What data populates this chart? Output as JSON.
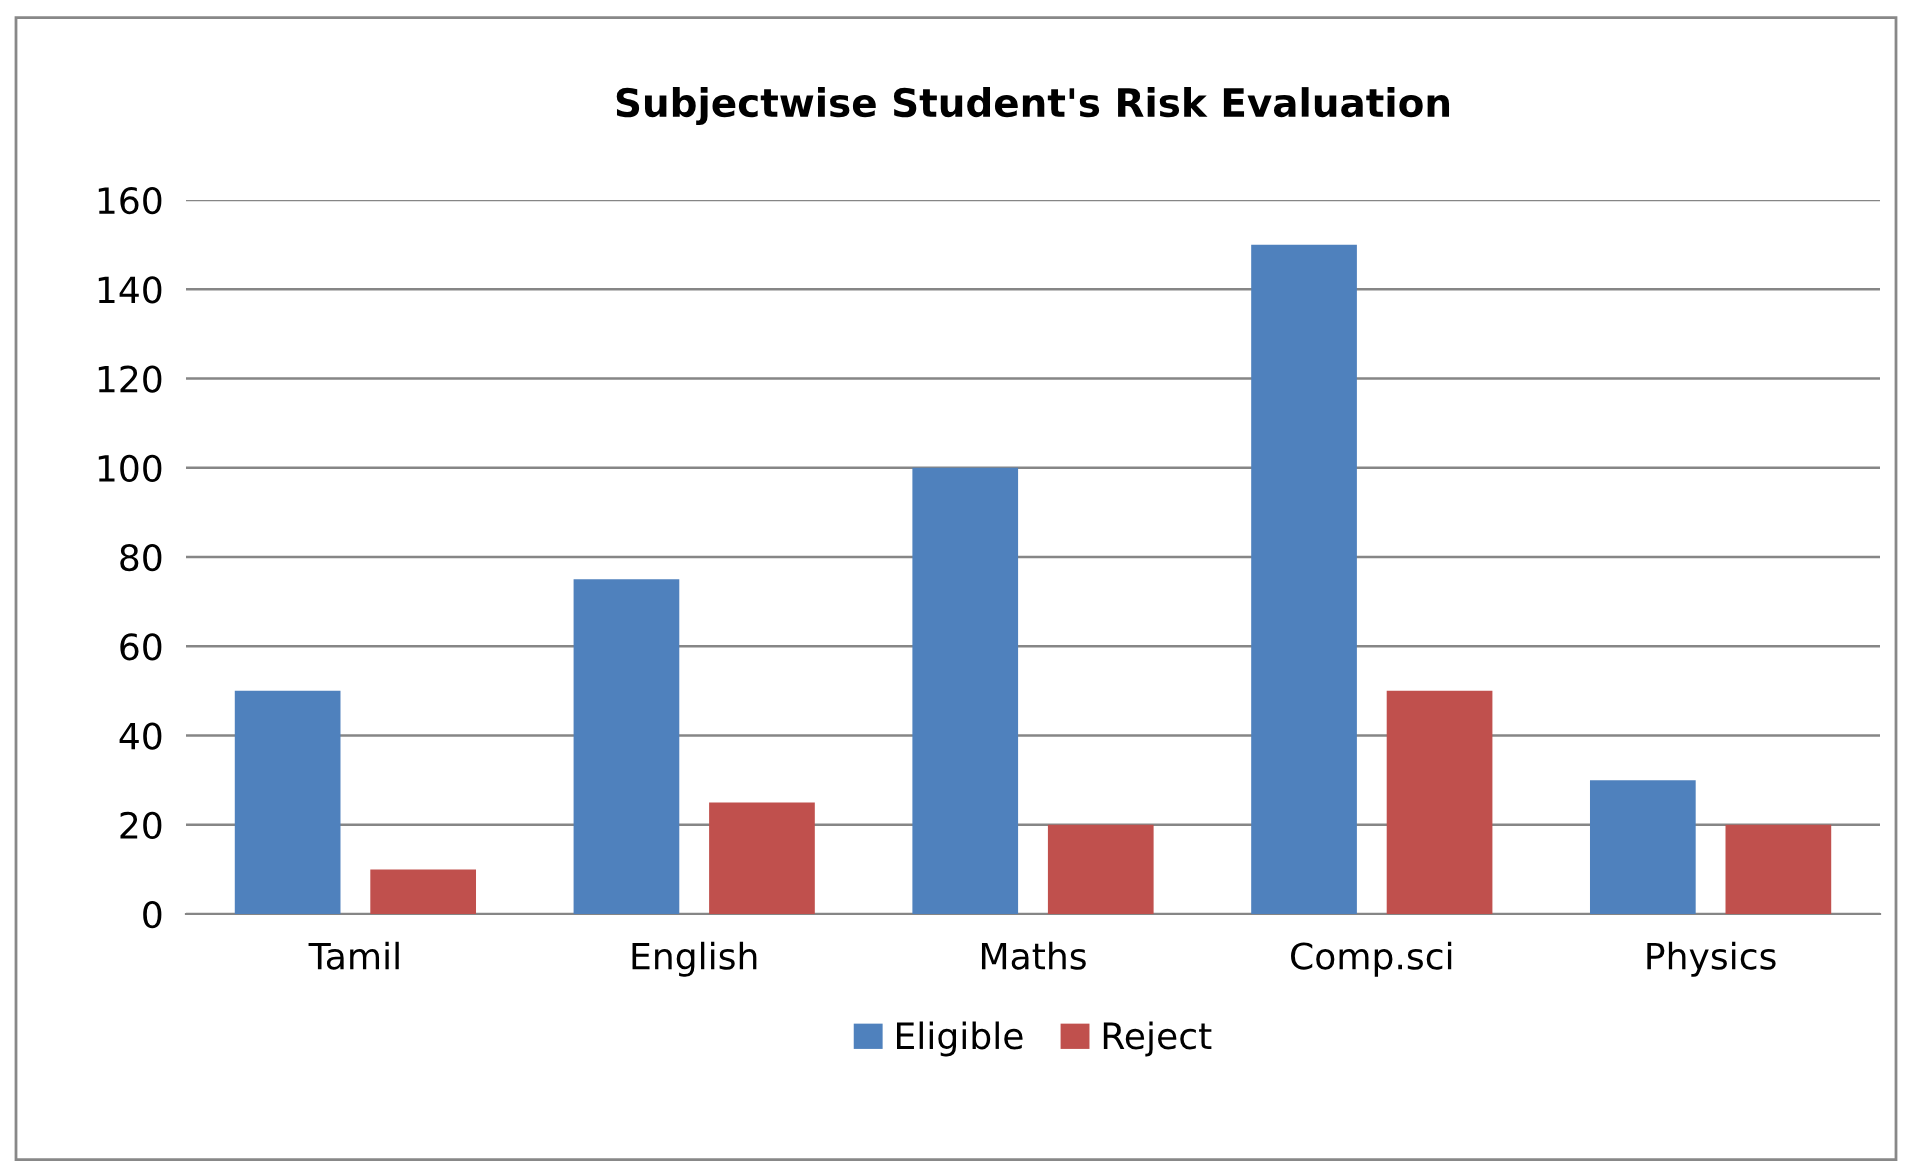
{
  "chart_data": {
    "type": "bar",
    "title": "Subjectwise Student's Risk Evaluation",
    "categories": [
      "Tamil",
      "English",
      "Maths",
      "Comp.sci",
      "Physics"
    ],
    "series": [
      {
        "name": "Eligible",
        "color": "#4f81bd",
        "values": [
          50,
          75,
          100,
          150,
          30
        ]
      },
      {
        "name": "Reject",
        "color": "#c0504d",
        "values": [
          10,
          25,
          20,
          50,
          20
        ]
      }
    ],
    "ylim": [
      0,
      160
    ],
    "yticks": [
      0,
      20,
      40,
      60,
      80,
      100,
      120,
      140,
      160
    ],
    "grid": "y",
    "legend": "bottom"
  }
}
